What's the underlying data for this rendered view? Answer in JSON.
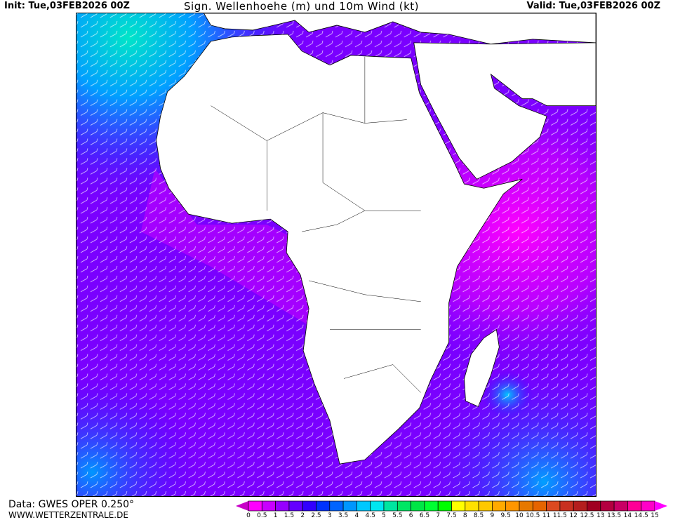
{
  "header": {
    "init": "Init: Tue,03FEB2026 00Z",
    "title": "Sign. Wellenhoehe (m) und 10m Wind (kt)",
    "valid": "Valid: Tue,03FEB2026 00Z"
  },
  "footer": {
    "source": "Data: GWES OPER 0.250°",
    "site": "WWW.WETTERZENTRALE.DE"
  },
  "map": {
    "region": "Africa / Atlantic / Indian Ocean",
    "land_color": "#ffffff",
    "ocean_dominant_color": "#8a00ff"
  },
  "legend": {
    "labels": [
      "0",
      "0.5",
      "1",
      "1.5",
      "2",
      "2.5",
      "3",
      "3.5",
      "4",
      "4.5",
      "5",
      "5.5",
      "6",
      "6.5",
      "7",
      "7.5",
      "8",
      "8.5",
      "9",
      "9.5",
      "10",
      "10.5",
      "11",
      "11.5",
      "12",
      "12.5",
      "13",
      "13.5",
      "14",
      "14.5",
      "15"
    ],
    "colors": [
      "#ff00ff",
      "#c800ff",
      "#9600ff",
      "#6400ff",
      "#3200ff",
      "#0032ff",
      "#0064ff",
      "#0096ff",
      "#00c8ff",
      "#00e6f0",
      "#00e6a0",
      "#00e664",
      "#00e646",
      "#00ff32",
      "#00ff00",
      "#ffff00",
      "#ffe100",
      "#ffc800",
      "#ffaa00",
      "#ff9600",
      "#e67800",
      "#e66400",
      "#dc4a20",
      "#c83020",
      "#b41e1e",
      "#a00020",
      "#b40040",
      "#c80064",
      "#ff0096",
      "#ff00c8"
    ],
    "under_color": "#c800c8",
    "over_color": "#ff00ff"
  }
}
